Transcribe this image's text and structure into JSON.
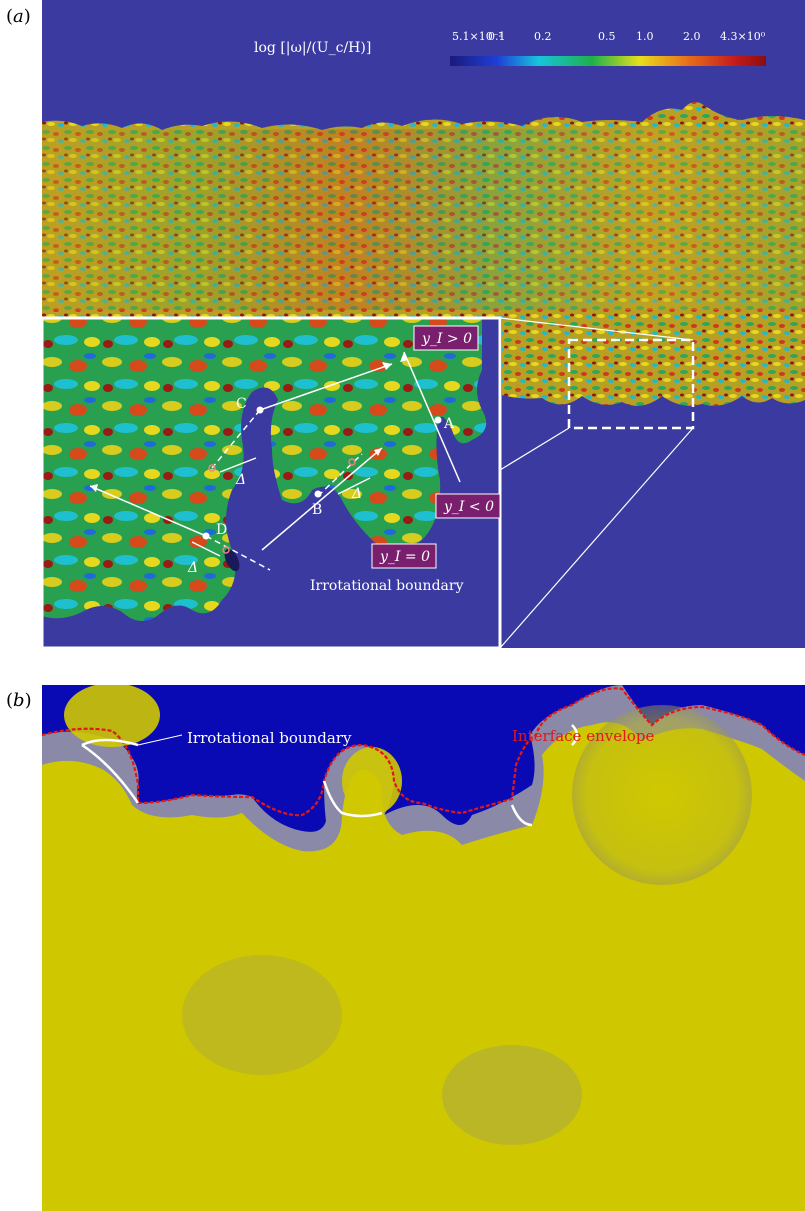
{
  "figure": {
    "panel_a": {
      "label_open": "(",
      "label_letter": "a",
      "label_close": ")",
      "colorbar": {
        "title": "log [|ω|/(U_c/H)]",
        "ticks": [
          "5.1×10⁻²",
          "0.1",
          "0.2",
          "0.5",
          "1.0",
          "2.0",
          "4.3×10⁰"
        ],
        "colors": [
          "#1a1a7a",
          "#1f3fd8",
          "#17c4dc",
          "#1fb04a",
          "#e6e01c",
          "#e8701c",
          "#c41c1c",
          "#8a0e0e"
        ]
      },
      "inset": {
        "points": [
          "A",
          "B",
          "C",
          "D"
        ],
        "labels": {
          "positive": "y_I > 0",
          "negative": "y_I < 0",
          "zero": "y_I = 0",
          "delta": "Δ",
          "boundary": "Irrotational boundary"
        }
      },
      "colors": {
        "background": "#3a3aa0",
        "label_box": "#7a1f6e"
      }
    },
    "panel_b": {
      "label_open": "(",
      "label_letter": "b",
      "label_close": ")",
      "annotations": {
        "envelope": "Interface envelope",
        "boundary": "Irrotational boundary"
      },
      "colors": {
        "background": "#0a0ab4",
        "fluid": "#cfc800",
        "envelope": "#e01818",
        "boundary": "#ffffff"
      }
    }
  }
}
